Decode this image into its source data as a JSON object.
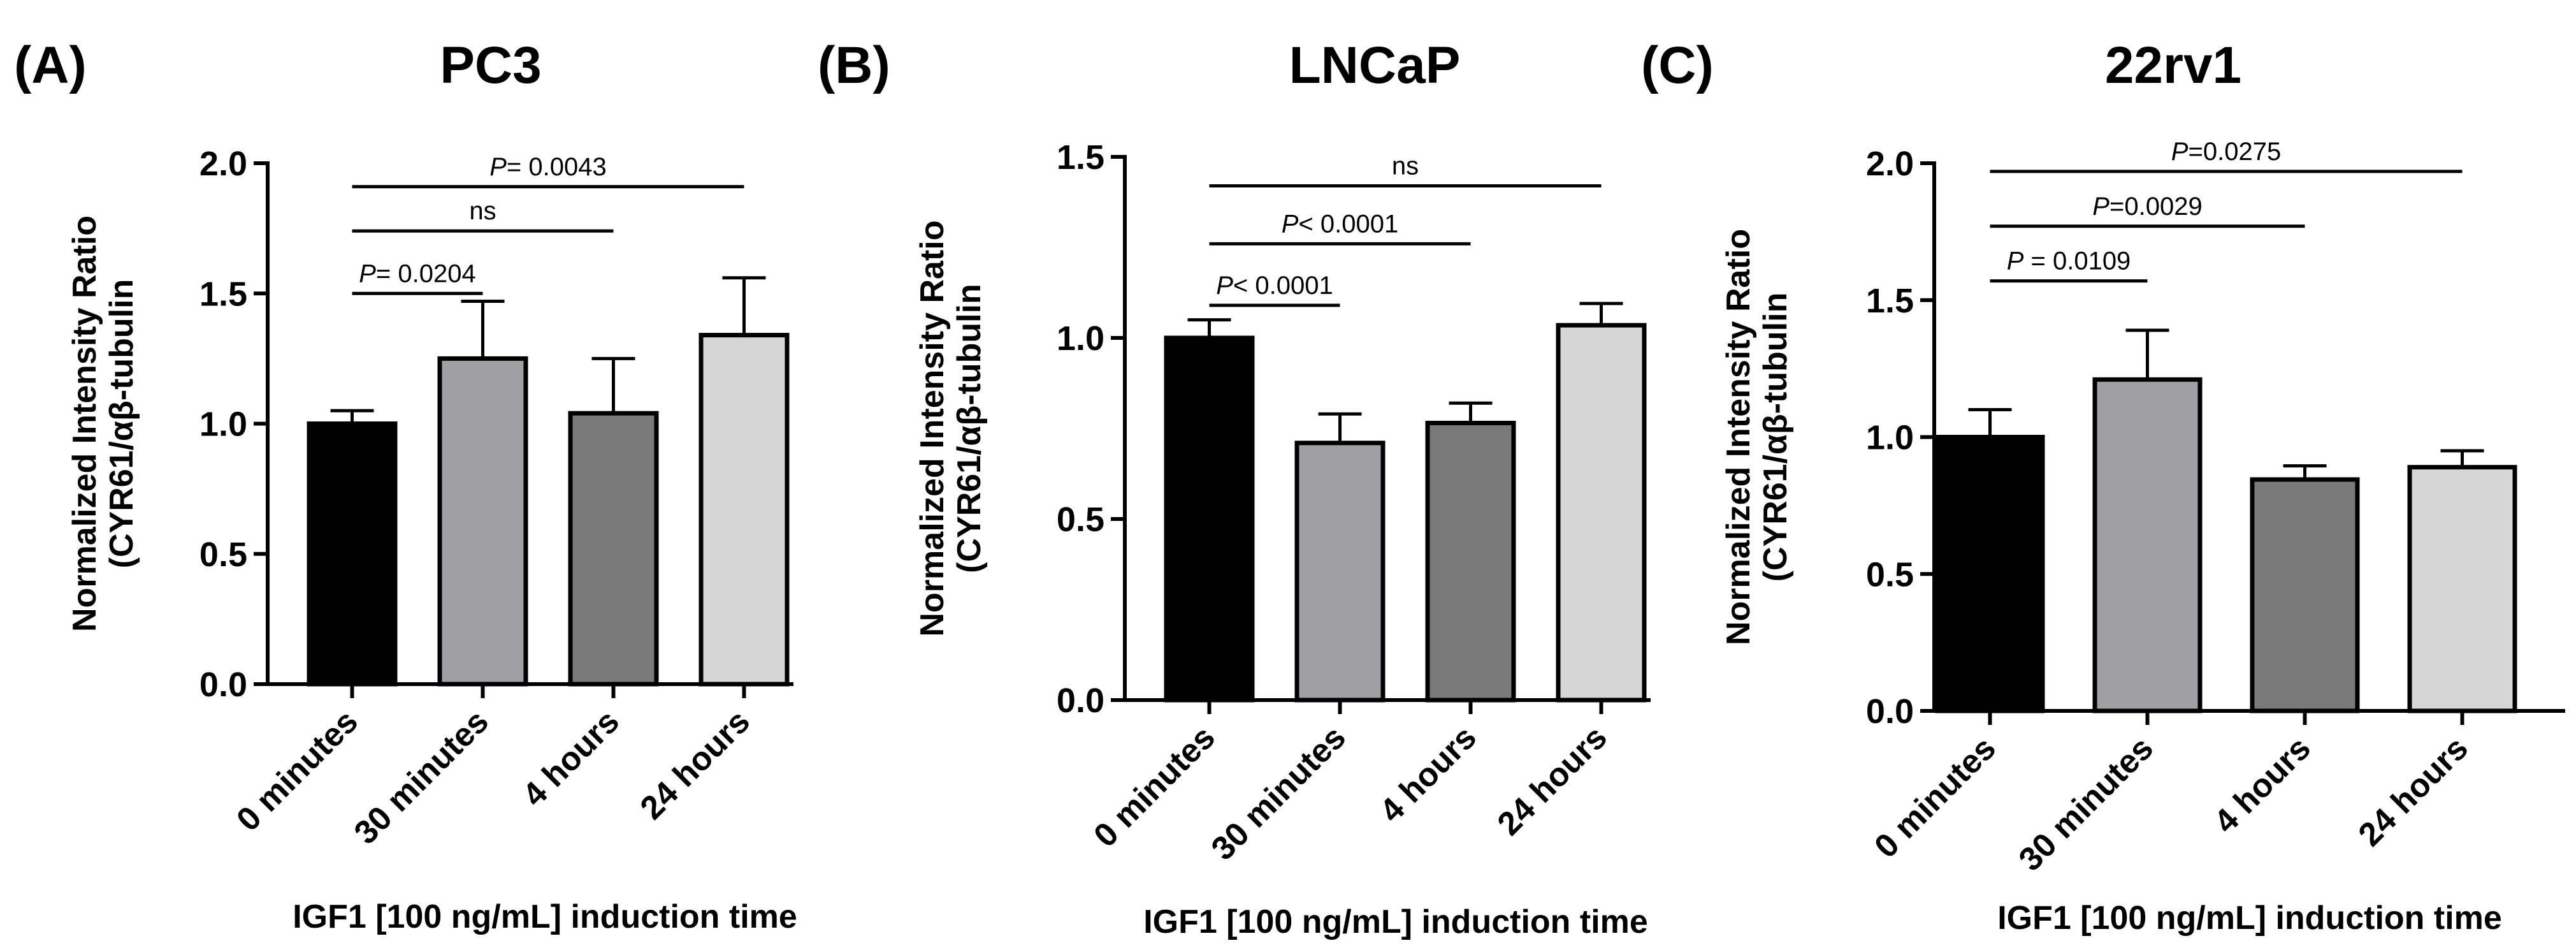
{
  "chart_data": [
    {
      "type": "bar",
      "panel_label": "(A)",
      "title": "PC3",
      "categories": [
        "0 minutes",
        "30 minutes",
        "4 hours",
        "24 hours"
      ],
      "values": [
        1.0,
        1.25,
        1.04,
        1.34
      ],
      "errors": [
        0.05,
        0.22,
        0.21,
        0.22
      ],
      "colors": [
        "#000000",
        "#a0a0a4",
        "#7a7a7a",
        "#d6d6d6"
      ],
      "ylabel_lines": [
        "Normalized Intensity Ratio",
        "(CYR61/αβ-tubulin"
      ],
      "xlabel": "IGF1 [100 ng/mL] induction time",
      "ylim": [
        0,
        2.0
      ],
      "yticks": [
        0.0,
        0.5,
        1.0,
        1.5,
        2.0
      ],
      "ytick_labels": [
        "0.0",
        "0.5",
        "1.0",
        "1.5",
        "2.0"
      ],
      "comparisons": [
        {
          "from": 0,
          "to": 1,
          "level": 1.5,
          "p_prefix": "P",
          "text": "= 0.0204"
        },
        {
          "from": 0,
          "to": 2,
          "level": 1.74,
          "p_prefix": "",
          "text": "ns"
        },
        {
          "from": 0,
          "to": 3,
          "level": 1.91,
          "p_prefix": "P",
          "text": "= 0.0043"
        }
      ]
    },
    {
      "type": "bar",
      "panel_label": "(B)",
      "title": "LNCaP",
      "categories": [
        "0 minutes",
        "30 minutes",
        "4 hours",
        "24 hours"
      ],
      "values": [
        1.0,
        0.71,
        0.765,
        1.035
      ],
      "errors": [
        0.05,
        0.08,
        0.055,
        0.06
      ],
      "colors": [
        "#000000",
        "#a0a0a4",
        "#7a7a7a",
        "#d6d6d6"
      ],
      "ylabel_lines": [
        "Normalized Intensity Ratio",
        "(CYR61/αβ-tubulin"
      ],
      "xlabel": "IGF1 [100 ng/mL] induction time",
      "ylim": [
        0,
        1.5
      ],
      "yticks": [
        0.0,
        0.5,
        1.0,
        1.5
      ],
      "ytick_labels": [
        "0.0",
        "0.5",
        "1.0",
        "1.5"
      ],
      "comparisons": [
        {
          "from": 0,
          "to": 1,
          "level": 1.09,
          "p_prefix": "P",
          "text": "< 0.0001"
        },
        {
          "from": 0,
          "to": 2,
          "level": 1.26,
          "p_prefix": "P",
          "text": "< 0.0001"
        },
        {
          "from": 0,
          "to": 3,
          "level": 1.42,
          "p_prefix": "",
          "text": "ns"
        }
      ]
    },
    {
      "type": "bar",
      "panel_label": "(C)",
      "title": "22rv1",
      "categories": [
        "0 minutes",
        "30 minutes",
        "4 hours",
        "24 hours"
      ],
      "values": [
        1.0,
        1.21,
        0.845,
        0.89
      ],
      "errors": [
        0.1,
        0.18,
        0.05,
        0.06
      ],
      "colors": [
        "#000000",
        "#a0a0a4",
        "#7a7a7a",
        "#d6d6d6"
      ],
      "ylabel_lines": [
        "Normalized Intensity Ratio",
        "(CYR61/αβ-tubulin"
      ],
      "xlabel": "IGF1 [100 ng/mL] induction time",
      "ylim": [
        0,
        2.0
      ],
      "yticks": [
        0.0,
        0.5,
        1.0,
        1.5,
        2.0
      ],
      "ytick_labels": [
        "0.0",
        "0.5",
        "1.0",
        "1.5",
        "2.0"
      ],
      "comparisons": [
        {
          "from": 0,
          "to": 1,
          "level": 1.57,
          "p_prefix": "P",
          "text": " = 0.0109"
        },
        {
          "from": 0,
          "to": 2,
          "level": 1.77,
          "p_prefix": "P",
          "text": "=0.0029"
        },
        {
          "from": 0,
          "to": 3,
          "level": 1.97,
          "p_prefix": "P",
          "text": "=0.0275"
        }
      ]
    }
  ]
}
